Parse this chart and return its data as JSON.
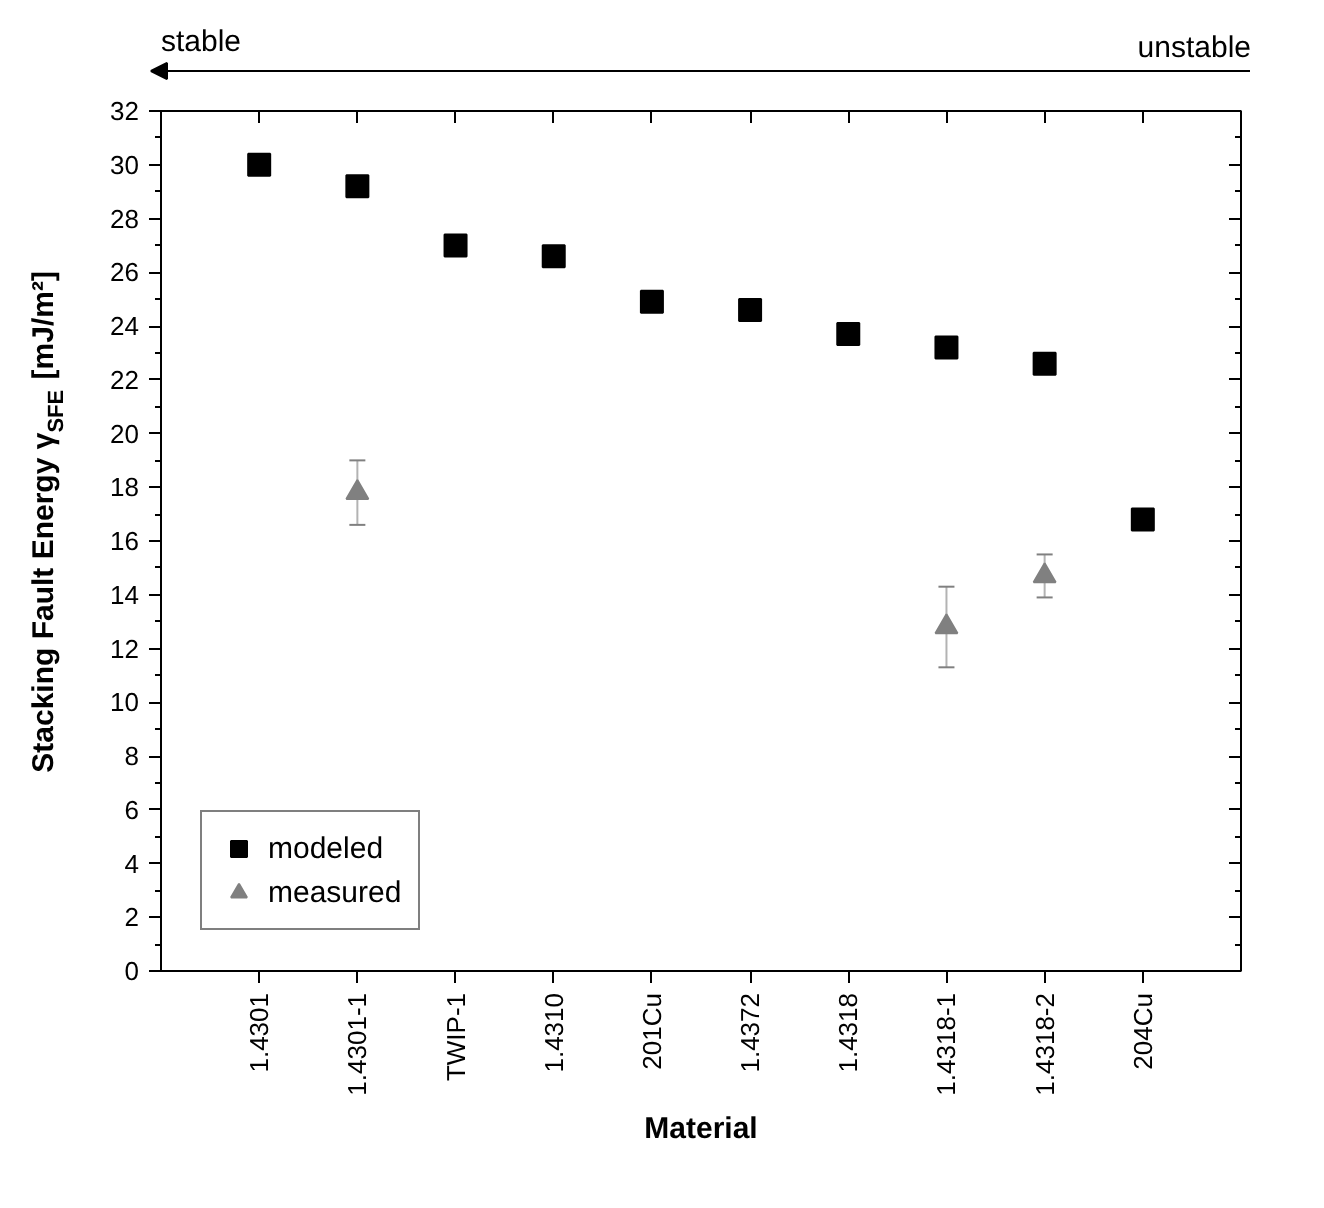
{
  "chart_data": {
    "type": "scatter",
    "xlabel": "Material",
    "ylabel": "Stacking Fault Energy γ$_{SFE}$ [mJ/m²]",
    "categories": [
      "1.4301",
      "1.4301-1",
      "TWIP-1",
      "1.4310",
      "201Cu",
      "1.4372",
      "1.4318",
      "1.4318-1",
      "1.4318-2",
      "204Cu"
    ],
    "series": [
      {
        "name": "modeled",
        "color": "#000000",
        "marker": "square",
        "values": [
          30,
          29.2,
          27,
          26.6,
          24.9,
          24.6,
          23.7,
          23.2,
          22.6,
          16.8
        ]
      },
      {
        "name": "measured",
        "color": "#808080",
        "marker": "triangle",
        "values": [
          null,
          17.8,
          null,
          null,
          null,
          null,
          null,
          12.8,
          14.7,
          null
        ],
        "errors": [
          null,
          [
            16.6,
            19
          ],
          null,
          null,
          null,
          null,
          null,
          [
            11.3,
            14.3
          ],
          [
            13.9,
            15.5
          ],
          null
        ]
      }
    ],
    "ylim": [
      0,
      32
    ],
    "yticks": [
      0,
      {
        "value": 1,
        "label": null
      },
      2,
      {
        "value": 3,
        "label": null
      },
      4,
      {
        "value": 5,
        "label": null
      },
      6,
      {
        "value": 7,
        "label": null
      },
      8,
      {
        "value": 9,
        "label": null
      },
      10,
      {
        "value": 11,
        "label": null
      },
      12,
      {
        "value": 13,
        "label": null
      },
      14,
      {
        "value": 15,
        "label": null
      },
      16,
      {
        "value": 17,
        "label": null
      },
      18,
      {
        "value": 19,
        "label": null
      },
      20,
      {
        "value": 21,
        "label": null
      },
      22,
      {
        "value": 23,
        "label": null
      },
      24,
      {
        "value": 25,
        "label": null
      },
      26,
      {
        "value": 27,
        "label": null
      },
      28,
      {
        "value": 29,
        "label": null
      },
      30,
      {
        "value": 31,
        "label": null
      },
      32
    ],
    "grid": false,
    "legend": "bottom left",
    "annotations": [
      "stable",
      "unstable"
    ]
  }
}
